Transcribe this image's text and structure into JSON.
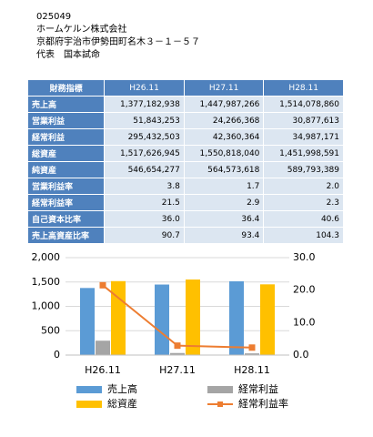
{
  "header": {
    "code": "025049",
    "company": "ホームケルン株式会社",
    "address": "京都府宇治市伊勢田町名木３－１－５７",
    "representative": "代表　国本試命"
  },
  "table": {
    "columns": [
      "財務指標",
      "H26.11",
      "H27.11",
      "H28.11"
    ],
    "rows": [
      [
        "売上高",
        "1,377,182,938",
        "1,447,987,266",
        "1,514,078,860"
      ],
      [
        "営業利益",
        "51,843,253",
        "24,266,368",
        "30,877,613"
      ],
      [
        "経常利益",
        "295,432,503",
        "42,360,364",
        "34,987,171"
      ],
      [
        "総資産",
        "1,517,626,945",
        "1,550,818,040",
        "1,451,998,591"
      ],
      [
        "純資産",
        "546,654,277",
        "564,573,618",
        "589,793,389"
      ],
      [
        "営業利益率",
        "3.8",
        "1.7",
        "2.0"
      ],
      [
        "経常利益率",
        "21.5",
        "2.9",
        "2.3"
      ],
      [
        "自己資本比率",
        "36.0",
        "36.4",
        "40.6"
      ],
      [
        "売上高資産比率",
        "90.7",
        "93.4",
        "104.3"
      ]
    ]
  },
  "chart_data": {
    "type": "bar",
    "categories": [
      "H26.11",
      "H27.11",
      "H28.11"
    ],
    "series": [
      {
        "name": "売上高",
        "color": "#5b9bd5",
        "values": [
          1377,
          1448,
          1514
        ]
      },
      {
        "name": "経常利益",
        "color": "#a5a5a5",
        "values": [
          295,
          42,
          35
        ]
      },
      {
        "name": "総資産",
        "color": "#ffc000",
        "values": [
          1518,
          1551,
          1452
        ]
      },
      {
        "name": "経常利益率",
        "color": "#ed7d31",
        "type": "line",
        "axis": "y2",
        "values": [
          21.5,
          2.9,
          2.3
        ]
      }
    ],
    "ylim": [
      0,
      2000
    ],
    "yticks": [
      0,
      500,
      {
        "value": 1000,
        "label": "1,000"
      },
      {
        "value": 1500,
        "label": "1,500"
      },
      {
        "value": 2000,
        "label": "2,000"
      }
    ],
    "y2lim": [
      0,
      30
    ],
    "y2ticks": [
      {
        "value": 0,
        "label": "0.0"
      },
      {
        "value": 10,
        "label": "10.0"
      },
      {
        "value": 20,
        "label": "20.0"
      },
      {
        "value": 30,
        "label": "30.0"
      }
    ],
    "grid": true
  }
}
